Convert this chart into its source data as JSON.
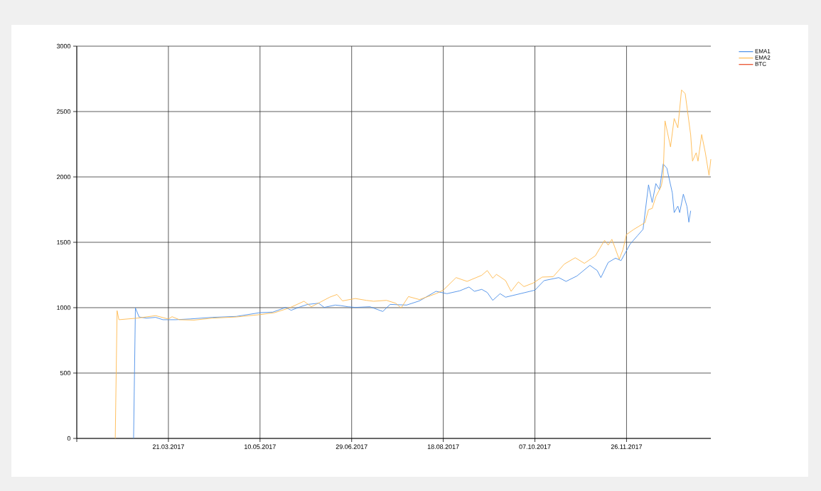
{
  "chart_data": {
    "type": "line",
    "xlim": [
      "2017-01-30",
      "2018-01-11"
    ],
    "xticks": [
      {
        "value": "2017-01-30",
        "label": null
      },
      {
        "value": "2017-03-21",
        "label": "21.03.2017"
      },
      {
        "value": "2017-05-10",
        "label": "10.05.2017"
      },
      {
        "value": "2017-06-29",
        "label": "29.06.2017"
      },
      {
        "value": "2017-08-18",
        "label": "18.08.2017"
      },
      {
        "value": "2017-10-07",
        "label": "07.10.2017"
      },
      {
        "value": "2017-11-26",
        "label": "26.11.2017"
      }
    ],
    "ylim": [
      0,
      3000
    ],
    "yticks": [
      0,
      500,
      1000,
      1500,
      2000,
      2500,
      3000
    ],
    "grid": true,
    "legend": "top right",
    "series": [
      {
        "name": "EMA1",
        "color": "#4a8ee8",
        "x": [
          "2017-03-02",
          "2017-03-03",
          "2017-03-05",
          "2017-03-09",
          "2017-03-14",
          "2017-03-18",
          "2017-03-25",
          "2017-04-02",
          "2017-04-14",
          "2017-04-27",
          "2017-05-10",
          "2017-05-17",
          "2017-05-24",
          "2017-05-27",
          "2017-06-01",
          "2017-06-05",
          "2017-06-11",
          "2017-06-14",
          "2017-06-20",
          "2017-06-23",
          "2017-06-27",
          "2017-07-01",
          "2017-07-09",
          "2017-07-16",
          "2017-07-20",
          "2017-07-29",
          "2017-08-05",
          "2017-08-14",
          "2017-08-20",
          "2017-08-27",
          "2017-09-01",
          "2017-09-04",
          "2017-09-08",
          "2017-09-11",
          "2017-09-14",
          "2017-09-18",
          "2017-09-21",
          "2017-09-29",
          "2017-10-07",
          "2017-10-12",
          "2017-10-20",
          "2017-10-24",
          "2017-10-30",
          "2017-11-06",
          "2017-11-10",
          "2017-11-12",
          "2017-11-16",
          "2017-11-20",
          "2017-11-23",
          "2017-11-28",
          "2017-12-02",
          "2017-12-05",
          "2017-12-08",
          "2017-12-10",
          "2017-12-12",
          "2017-12-14",
          "2017-12-16",
          "2017-12-18",
          "2017-12-21",
          "2017-12-22",
          "2017-12-24",
          "2017-12-25",
          "2017-12-27",
          "2017-12-29",
          "2017-12-30",
          "2017-12-31"
        ],
        "values": [
          0,
          998,
          929,
          920,
          926,
          908,
          908,
          914,
          926,
          933,
          962,
          966,
          1002,
          980,
          1007,
          1025,
          1034,
          1002,
          1020,
          1016,
          1007,
          1002,
          1007,
          971,
          1025,
          1020,
          1052,
          1125,
          1107,
          1129,
          1158,
          1125,
          1140,
          1116,
          1056,
          1107,
          1080,
          1107,
          1134,
          1207,
          1230,
          1201,
          1243,
          1324,
          1284,
          1230,
          1346,
          1379,
          1360,
          1487,
          1551,
          1599,
          1940,
          1804,
          1949,
          1904,
          2099,
          2067,
          1877,
          1727,
          1777,
          1727,
          1868,
          1773,
          1654,
          1741
        ]
      },
      {
        "name": "EMA2",
        "color": "#ffb84d",
        "x": [
          "2017-02-20",
          "2017-02-21",
          "2017-02-22",
          "2017-03-04",
          "2017-03-14",
          "2017-03-21",
          "2017-03-23",
          "2017-03-27",
          "2017-04-04",
          "2017-04-14",
          "2017-04-27",
          "2017-05-10",
          "2017-05-18",
          "2017-05-26",
          "2017-06-03",
          "2017-06-07",
          "2017-06-12",
          "2017-06-17",
          "2017-06-21",
          "2017-06-24",
          "2017-07-01",
          "2017-07-07",
          "2017-07-11",
          "2017-07-18",
          "2017-07-23",
          "2017-07-26",
          "2017-07-30",
          "2017-08-05",
          "2017-08-14",
          "2017-08-18",
          "2017-08-25",
          "2017-08-31",
          "2017-09-08",
          "2017-09-11",
          "2017-09-14",
          "2017-09-16",
          "2017-09-21",
          "2017-09-24",
          "2017-09-28",
          "2017-10-01",
          "2017-10-06",
          "2017-10-11",
          "2017-10-17",
          "2017-10-23",
          "2017-10-29",
          "2017-11-03",
          "2017-11-09",
          "2017-11-14",
          "2017-11-16",
          "2017-11-18",
          "2017-11-22",
          "2017-11-24",
          "2017-11-26",
          "2017-11-30",
          "2017-12-06",
          "2017-12-08",
          "2017-12-10",
          "2017-12-12",
          "2017-12-15",
          "2017-12-16",
          "2017-12-17",
          "2017-12-20",
          "2017-12-22",
          "2017-12-24",
          "2017-12-26",
          "2017-12-28",
          "2017-12-31",
          "2018-01-01",
          "2018-01-03",
          "2018-01-04",
          "2018-01-06",
          "2018-01-08",
          "2018-01-10",
          "2018-01-11"
        ],
        "values": [
          0,
          977,
          908,
          920,
          939,
          913,
          931,
          908,
          905,
          920,
          929,
          947,
          962,
          998,
          1049,
          1007,
          1043,
          1080,
          1101,
          1052,
          1070,
          1056,
          1049,
          1056,
          1034,
          998,
          1085,
          1062,
          1107,
          1134,
          1230,
          1201,
          1248,
          1284,
          1225,
          1255,
          1207,
          1125,
          1197,
          1161,
          1188,
          1234,
          1237,
          1333,
          1382,
          1339,
          1397,
          1515,
          1478,
          1523,
          1370,
          1442,
          1560,
          1599,
          1650,
          1750,
          1759,
          1849,
          1931,
          2013,
          2429,
          2230,
          2447,
          2375,
          2665,
          2638,
          2321,
          2121,
          2185,
          2121,
          2324,
          2185,
          2013,
          2136
        ]
      },
      {
        "name": "BTC",
        "color": "#e8441c"
      }
    ]
  }
}
